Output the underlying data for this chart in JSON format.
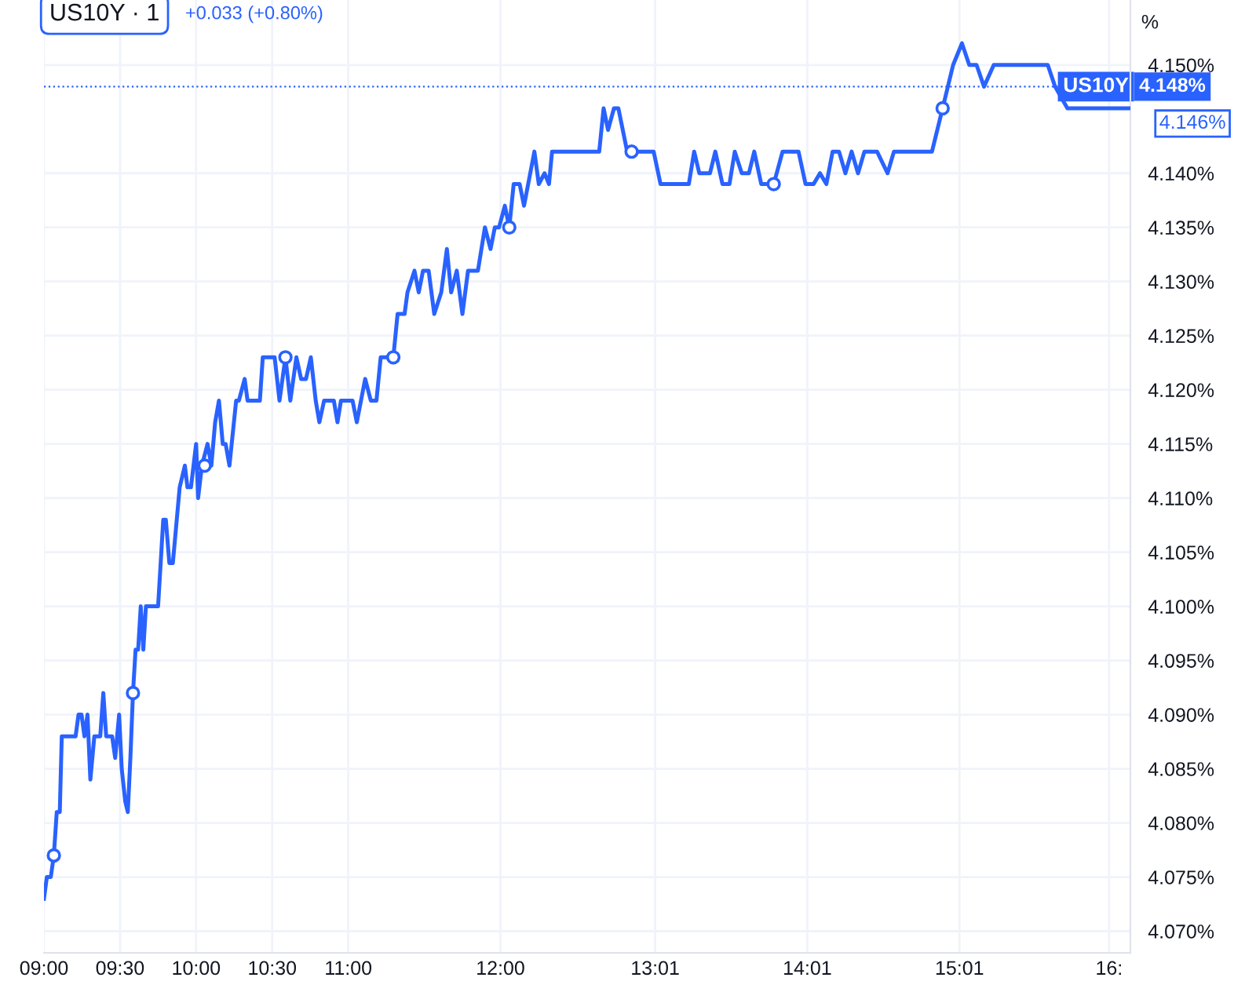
{
  "chart_data": {
    "type": "line",
    "title": "US10Y · 1",
    "subtitle": "+0.033 (+0.80%)",
    "ylabel": "%",
    "xlim": [
      9.0,
      16.14
    ],
    "ylim": [
      4.068,
      4.156
    ],
    "xticks": [
      {
        "value": 9.0,
        "label": "09:00"
      },
      {
        "value": 9.5,
        "label": "09:30"
      },
      {
        "value": 10.0,
        "label": "10:00"
      },
      {
        "value": 10.5,
        "label": "10:30"
      },
      {
        "value": 11.0,
        "label": "11:00"
      },
      {
        "value": 12.0,
        "label": "12:00"
      },
      {
        "value": 13.0167,
        "label": "13:01"
      },
      {
        "value": 14.0167,
        "label": "14:01"
      },
      {
        "value": 15.0167,
        "label": "15:01"
      },
      {
        "value": 16.0,
        "label": "16:"
      }
    ],
    "yticks": [
      {
        "value": 4.07,
        "label": "4.070%"
      },
      {
        "value": 4.075,
        "label": "4.075%"
      },
      {
        "value": 4.08,
        "label": "4.080%"
      },
      {
        "value": 4.085,
        "label": "4.085%"
      },
      {
        "value": 4.09,
        "label": "4.090%"
      },
      {
        "value": 4.095,
        "label": "4.095%"
      },
      {
        "value": 4.1,
        "label": "4.100%"
      },
      {
        "value": 4.105,
        "label": "4.105%"
      },
      {
        "value": 4.11,
        "label": "4.110%"
      },
      {
        "value": 4.115,
        "label": "4.115%"
      },
      {
        "value": 4.12,
        "label": "4.120%"
      },
      {
        "value": 4.125,
        "label": "4.125%"
      },
      {
        "value": 4.13,
        "label": "4.130%"
      },
      {
        "value": 4.135,
        "label": "4.135%"
      },
      {
        "value": 4.14,
        "label": "4.140%"
      },
      {
        "value": 4.15,
        "label": "4.150%"
      }
    ],
    "grid": true,
    "legend": false,
    "ref_lines": [
      {
        "axis": "y",
        "value": 4.148,
        "label": "4.148%",
        "color": "#2962ff",
        "line_style": "dotted"
      }
    ],
    "annotations": [
      {
        "text": "US10Y",
        "x": 16.129,
        "y": 4.148
      },
      {
        "text": "4.146%",
        "x": 16.129,
        "y": 4.146
      }
    ],
    "series": [
      {
        "color": "#2962ff",
        "marker": "none",
        "line_style": "solid",
        "x": [
          9.0,
          9.019,
          9.045,
          9.065,
          9.084,
          9.104,
          9.117,
          9.208,
          9.227,
          9.247,
          9.266,
          9.286,
          9.305,
          9.331,
          9.37,
          9.39,
          9.409,
          9.448,
          9.468,
          9.494,
          9.511,
          9.534,
          9.551,
          9.568,
          9.585,
          9.602,
          9.619,
          9.636,
          9.653,
          9.67,
          9.75,
          9.784,
          9.801,
          9.824,
          9.847,
          9.892,
          9.926,
          9.943,
          9.966,
          10.0,
          10.013,
          10.038,
          10.075,
          10.1,
          10.125,
          10.15,
          10.175,
          10.194,
          10.219,
          10.263,
          10.281,
          10.319,
          10.338,
          10.419,
          10.438,
          10.516,
          10.548,
          10.587,
          10.619,
          10.659,
          10.69,
          10.722,
          10.754,
          10.786,
          10.81,
          10.841,
          10.905,
          10.929,
          10.952,
          11.028,
          11.056,
          11.111,
          11.148,
          11.185,
          11.213,
          11.296,
          11.324,
          11.37,
          11.389,
          11.435,
          11.463,
          11.491,
          11.528,
          11.565,
          11.611,
          11.648,
          11.676,
          11.713,
          11.75,
          11.787,
          11.852,
          11.898,
          11.935,
          11.963,
          11.991,
          12.029,
          12.058,
          12.087,
          12.126,
          12.155,
          12.223,
          12.252,
          12.29,
          12.319,
          12.339,
          12.649,
          12.678,
          12.707,
          12.746,
          12.775,
          12.833,
          13.007,
          13.052,
          13.238,
          13.273,
          13.307,
          13.377,
          13.412,
          13.459,
          13.505,
          13.54,
          13.586,
          13.633,
          13.668,
          13.714,
          13.796,
          13.854,
          13.959,
          14.005,
          14.058,
          14.1,
          14.142,
          14.183,
          14.225,
          14.267,
          14.308,
          14.35,
          14.392,
          14.475,
          14.544,
          14.586,
          14.836,
          14.906,
          14.975,
          15.033,
          15.081,
          15.129,
          15.178,
          15.242,
          15.597,
          15.645,
          15.726,
          16.129
        ],
        "values": [
          4.073,
          4.075,
          4.075,
          4.077,
          4.081,
          4.081,
          4.088,
          4.088,
          4.09,
          4.09,
          4.088,
          4.09,
          4.084,
          4.088,
          4.088,
          4.092,
          4.088,
          4.088,
          4.086,
          4.09,
          4.085,
          4.082,
          4.081,
          4.086,
          4.092,
          4.096,
          4.096,
          4.1,
          4.096,
          4.1,
          4.1,
          4.108,
          4.108,
          4.104,
          4.104,
          4.111,
          4.113,
          4.111,
          4.111,
          4.115,
          4.11,
          4.113,
          4.115,
          4.113,
          4.117,
          4.119,
          4.115,
          4.115,
          4.113,
          4.119,
          4.119,
          4.121,
          4.119,
          4.119,
          4.123,
          4.123,
          4.119,
          4.123,
          4.119,
          4.123,
          4.121,
          4.121,
          4.123,
          4.119,
          4.117,
          4.119,
          4.119,
          4.117,
          4.119,
          4.119,
          4.117,
          4.121,
          4.119,
          4.119,
          4.123,
          4.123,
          4.127,
          4.127,
          4.129,
          4.131,
          4.129,
          4.131,
          4.131,
          4.127,
          4.129,
          4.133,
          4.129,
          4.131,
          4.127,
          4.131,
          4.131,
          4.135,
          4.133,
          4.135,
          4.135,
          4.137,
          4.135,
          4.139,
          4.139,
          4.137,
          4.142,
          4.139,
          4.14,
          4.139,
          4.142,
          4.142,
          4.146,
          4.144,
          4.146,
          4.146,
          4.142,
          4.142,
          4.139,
          4.139,
          4.142,
          4.14,
          4.14,
          4.142,
          4.139,
          4.139,
          4.142,
          4.14,
          4.14,
          4.142,
          4.139,
          4.139,
          4.142,
          4.142,
          4.139,
          4.139,
          4.14,
          4.139,
          4.142,
          4.142,
          4.14,
          4.142,
          4.14,
          4.142,
          4.142,
          4.14,
          4.142,
          4.142,
          4.146,
          4.15,
          4.152,
          4.15,
          4.15,
          4.148,
          4.15,
          4.15,
          4.148,
          4.146,
          4.146
        ]
      },
      {
        "type": "scatter",
        "color": "#2962ff",
        "marker": "circle",
        "x": [
          9.065,
          9.585,
          10.056,
          10.587,
          11.296,
          12.058,
          12.862,
          13.796,
          14.906
        ],
        "values": [
          4.077,
          4.092,
          4.113,
          4.123,
          4.123,
          4.135,
          4.142,
          4.139,
          4.146
        ]
      }
    ]
  }
}
